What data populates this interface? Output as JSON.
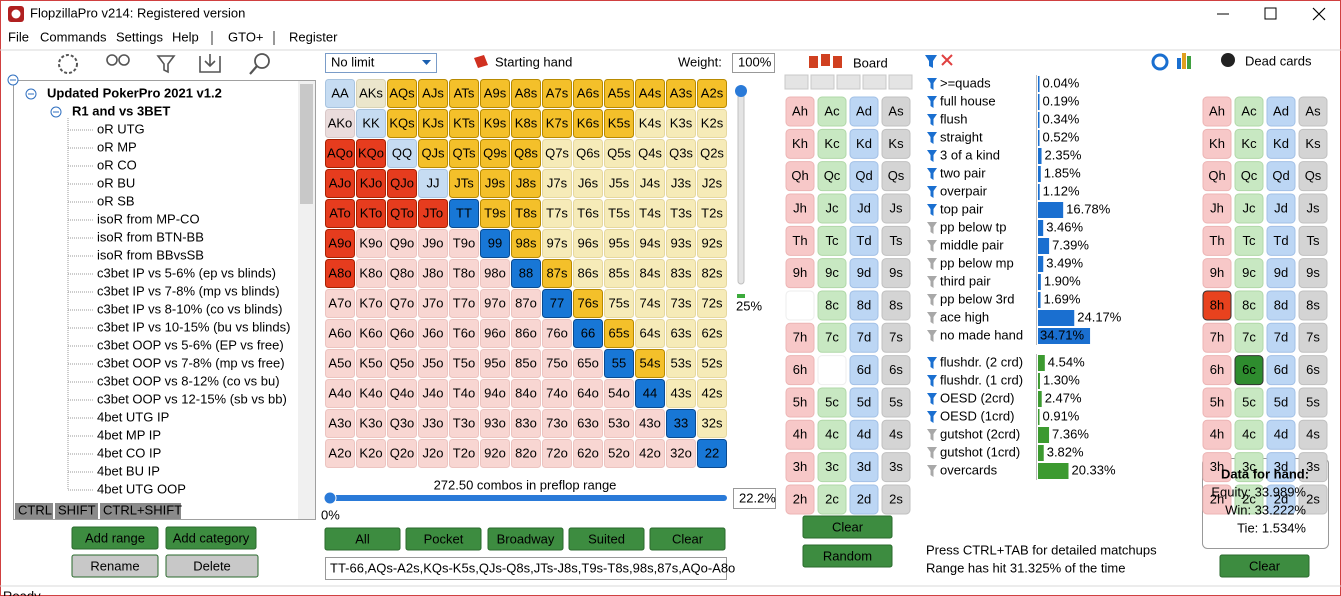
{
  "window": {
    "title": "FlopzillaPro v214: Registered version"
  },
  "menu": [
    "File",
    "Commands",
    "Settings",
    "Help",
    "GTO+",
    "Register"
  ],
  "tree": {
    "root": "Updated PokerPro 2021 v1.2",
    "group": "R1 and vs 3BET",
    "items": [
      {
        "text": "oR UTG",
        "color": "#222222"
      },
      {
        "text": "oR MP",
        "color": "#222222"
      },
      {
        "text": "oR CO",
        "color": "#222222"
      },
      {
        "text": "oR BU",
        "color": "#222222"
      },
      {
        "text": "oR SB",
        "color": "#222222"
      },
      {
        "text": "isoR from MP-CO",
        "color": "#e03a3a"
      },
      {
        "text": "isoR from BTN-BB",
        "color": "#e03a3a"
      },
      {
        "text": "isoR from BBvsSB",
        "color": "#e03a3a"
      },
      {
        "text": "c3bet IP vs 5-6% (ep vs blinds)",
        "color": "#2f7fc1"
      },
      {
        "text": "c3bet IP vs 7-8% (mp vs blinds)",
        "color": "#2f7fc1"
      },
      {
        "text": "c3bet IP vs 8-10% (co vs blinds)",
        "color": "#2f7fc1"
      },
      {
        "text": "c3bet IP vs 10-15% (bu vs blinds)",
        "color": "#2f7fc1"
      },
      {
        "text": "c3bet OOP vs 5-6% (EP vs free)",
        "color": "#6aa83a"
      },
      {
        "text": "c3bet OOP vs 7-8% (mp vs free)",
        "color": "#6aa83a"
      },
      {
        "text": "c3bet OOP vs 8-12% (co vs bu)",
        "color": "#6aa83a"
      },
      {
        "text": "c3bet OOP vs 12-15% (sb vs bb)",
        "color": "#6aa83a"
      },
      {
        "text": "4bet UTG IP",
        "color": "#e03a3a"
      },
      {
        "text": "4bet MP IP",
        "color": "#e03a3a"
      },
      {
        "text": "4bet CO IP",
        "color": "#e03a3a"
      },
      {
        "text": "4bet BU IP",
        "color": "#e03a3a"
      },
      {
        "text": "4bet UTG OOP",
        "color": "#e070e0"
      }
    ]
  },
  "tabs": [
    "CTRL",
    "SHIFT",
    "CTRL+SHIFT"
  ],
  "range_buttons": [
    "Add range",
    "Add category",
    "Rename",
    "Delete"
  ],
  "starting_hand": {
    "game": "No limit",
    "title": "Starting hand",
    "weight_label": "Weight:",
    "weight": "100%",
    "grid": [
      [
        "AA",
        "AKs",
        "AQs",
        "AJs",
        "ATs",
        "A9s",
        "A8s",
        "A7s",
        "A6s",
        "A5s",
        "A4s",
        "A3s",
        "A2s"
      ],
      [
        "AKo",
        "KK",
        "KQs",
        "KJs",
        "KTs",
        "K9s",
        "K8s",
        "K7s",
        "K6s",
        "K5s",
        "K4s",
        "K3s",
        "K2s"
      ],
      [
        "AQo",
        "KQo",
        "QQ",
        "QJs",
        "QTs",
        "Q9s",
        "Q8s",
        "Q7s",
        "Q6s",
        "Q5s",
        "Q4s",
        "Q3s",
        "Q2s"
      ],
      [
        "AJo",
        "KJo",
        "QJo",
        "JJ",
        "JTs",
        "J9s",
        "J8s",
        "J7s",
        "J6s",
        "J5s",
        "J4s",
        "J3s",
        "J2s"
      ],
      [
        "ATo",
        "KTo",
        "QTo",
        "JTo",
        "TT",
        "T9s",
        "T8s",
        "T7s",
        "T6s",
        "T5s",
        "T4s",
        "T3s",
        "T2s"
      ],
      [
        "A9o",
        "K9o",
        "Q9o",
        "J9o",
        "T9o",
        "99",
        "98s",
        "97s",
        "96s",
        "95s",
        "94s",
        "93s",
        "92s"
      ],
      [
        "A8o",
        "K8o",
        "Q8o",
        "J8o",
        "T8o",
        "98o",
        "88",
        "87s",
        "86s",
        "85s",
        "84s",
        "83s",
        "82s"
      ],
      [
        "A7o",
        "K7o",
        "Q7o",
        "J7o",
        "T7o",
        "97o",
        "87o",
        "77",
        "76s",
        "75s",
        "74s",
        "73s",
        "72s"
      ],
      [
        "A6o",
        "K6o",
        "Q6o",
        "J6o",
        "T6o",
        "96o",
        "86o",
        "76o",
        "66",
        "65s",
        "64s",
        "63s",
        "62s"
      ],
      [
        "A5o",
        "K5o",
        "Q5o",
        "J5o",
        "T5o",
        "95o",
        "85o",
        "75o",
        "65o",
        "55",
        "54s",
        "53s",
        "52s"
      ],
      [
        "A4o",
        "K4o",
        "Q4o",
        "J4o",
        "T4o",
        "94o",
        "84o",
        "74o",
        "64o",
        "54o",
        "44",
        "43s",
        "42s"
      ],
      [
        "A3o",
        "K3o",
        "Q3o",
        "J3o",
        "T3o",
        "93o",
        "83o",
        "73o",
        "63o",
        "53o",
        "43o",
        "33",
        "32s"
      ],
      [
        "A2o",
        "K2o",
        "Q2o",
        "J2o",
        "T2o",
        "92o",
        "82o",
        "72o",
        "62o",
        "52o",
        "42o",
        "32o",
        "22"
      ]
    ],
    "states": [
      "qfyyyyyyyyyyy",
      "pqyyyyyyyyuuu",
      "rrqyyyyuuuuuu",
      "rrrqyyyuuuuuu",
      "rrrrByyuuuuuu",
      "rooooByuuuuuu",
      "roooooByuuuuu",
      "oooooooByuuuu",
      "ooooooooByuuu",
      "oooooooooByuu",
      "ooooooooooBuu",
      "oooooooooooBu",
      "ooooooooooooB"
    ],
    "slider_label": "25%",
    "combos": "272.50 combos in preflop range",
    "min": "0%",
    "percent": "22.2%",
    "buttons": [
      "All",
      "Pocket",
      "Broadway",
      "Suited",
      "Clear"
    ],
    "range_text": "TT-66,AQs-A2s,KQs-K5s,QJs-Q8s,JTs-J8s,T9s-T8s,98s,87s,AQo-A8o"
  },
  "board": {
    "title": "Board",
    "cards": [
      [
        "Ah",
        "Ac",
        "Ad",
        "As"
      ],
      [
        "Kh",
        "Kc",
        "Kd",
        "Ks"
      ],
      [
        "Qh",
        "Qc",
        "Qd",
        "Qs"
      ],
      [
        "Jh",
        "Jc",
        "Jd",
        "Js"
      ],
      [
        "Th",
        "Tc",
        "Td",
        "Ts"
      ],
      [
        "9h",
        "9c",
        "9d",
        "9s"
      ],
      [
        null,
        "8c",
        "8d",
        "8s"
      ],
      [
        "7h",
        "7c",
        "7d",
        "7s"
      ],
      [
        "6h",
        null,
        "6d",
        "6s"
      ],
      [
        "5h",
        "5c",
        "5d",
        "5s"
      ],
      [
        "4h",
        "4c",
        "4d",
        "4s"
      ],
      [
        "3h",
        "3c",
        "3d",
        "3s"
      ],
      [
        "2h",
        "2c",
        "2d",
        "2s"
      ]
    ],
    "buttons": [
      "Clear",
      "Random"
    ]
  },
  "stats": {
    "made": [
      {
        "name": ">=quads",
        "value": 0.04,
        "label": "0.04%",
        "active": true
      },
      {
        "name": "full house",
        "value": 0.19,
        "label": "0.19%",
        "active": true
      },
      {
        "name": "flush",
        "value": 0.34,
        "label": "0.34%",
        "active": true
      },
      {
        "name": "straight",
        "value": 0.52,
        "label": "0.52%",
        "active": true
      },
      {
        "name": "3 of a kind",
        "value": 2.35,
        "label": "2.35%",
        "active": true
      },
      {
        "name": "two pair",
        "value": 1.85,
        "label": "1.85%",
        "active": true
      },
      {
        "name": "overpair",
        "value": 1.12,
        "label": "1.12%",
        "active": true
      },
      {
        "name": "top pair",
        "value": 16.78,
        "label": "16.78%",
        "active": true
      },
      {
        "name": "pp below tp",
        "value": 3.46,
        "label": "3.46%",
        "active": false
      },
      {
        "name": "middle pair",
        "value": 7.39,
        "label": "7.39%",
        "active": false
      },
      {
        "name": "pp below mp",
        "value": 3.49,
        "label": "3.49%",
        "active": false
      },
      {
        "name": "third pair",
        "value": 1.9,
        "label": "1.90%",
        "active": false
      },
      {
        "name": "pp below 3rd",
        "value": 1.69,
        "label": "1.69%",
        "active": false
      },
      {
        "name": "ace high",
        "value": 24.17,
        "label": "24.17%",
        "active": false
      },
      {
        "name": "no made hand",
        "value": 34.71,
        "label": "34.71%",
        "active": false
      }
    ],
    "draws": [
      {
        "name": "flushdr. (2 crd)",
        "value": 4.54,
        "label": "4.54%",
        "active": true
      },
      {
        "name": "flushdr. (1 crd)",
        "value": 1.3,
        "label": "1.30%",
        "active": true
      },
      {
        "name": "OESD (2crd)",
        "value": 2.47,
        "label": "2.47%",
        "active": true
      },
      {
        "name": "OESD (1crd)",
        "value": 0.91,
        "label": "0.91%",
        "active": true
      },
      {
        "name": "gutshot (2crd)",
        "value": 7.36,
        "label": "7.36%",
        "active": false
      },
      {
        "name": "gutshot (1crd)",
        "value": 3.82,
        "label": "3.82%",
        "active": false
      },
      {
        "name": "overcards",
        "value": 20.33,
        "label": "20.33%",
        "active": false
      }
    ],
    "hint": "Press CTRL+TAB for detailed matchups",
    "summary": "Range has hit 31.325% of the time"
  },
  "dead_cards": {
    "title": "Dead cards",
    "cards": [
      [
        "Ah",
        "Ac",
        "Ad",
        "As"
      ],
      [
        "Kh",
        "Kc",
        "Kd",
        "Ks"
      ],
      [
        "Qh",
        "Qc",
        "Qd",
        "Qs"
      ],
      [
        "Jh",
        "Jc",
        "Jd",
        "Js"
      ],
      [
        "Th",
        "Tc",
        "Td",
        "Ts"
      ],
      [
        "9h",
        "9c",
        "9d",
        "9s"
      ],
      [
        "8h",
        "8c",
        "8d",
        "8s"
      ],
      [
        "7h",
        "7c",
        "7d",
        "7s"
      ],
      [
        "6h",
        "6c",
        "6d",
        "6s"
      ],
      [
        "5h",
        "5c",
        "5d",
        "5s"
      ],
      [
        "4h",
        "4c",
        "4d",
        "4s"
      ],
      [
        "3h",
        "3c",
        "3d",
        "3s"
      ],
      [
        "2h",
        "2c",
        "2d",
        "2s"
      ]
    ],
    "selected": [
      [
        6,
        0
      ],
      [
        8,
        1
      ]
    ],
    "hand_title": "Data for hand:",
    "equity": "Equity: 33.989%",
    "win": "Win: 33.222%",
    "tie": "Tie: 1.534%",
    "button": "Clear"
  },
  "status": "Ready"
}
